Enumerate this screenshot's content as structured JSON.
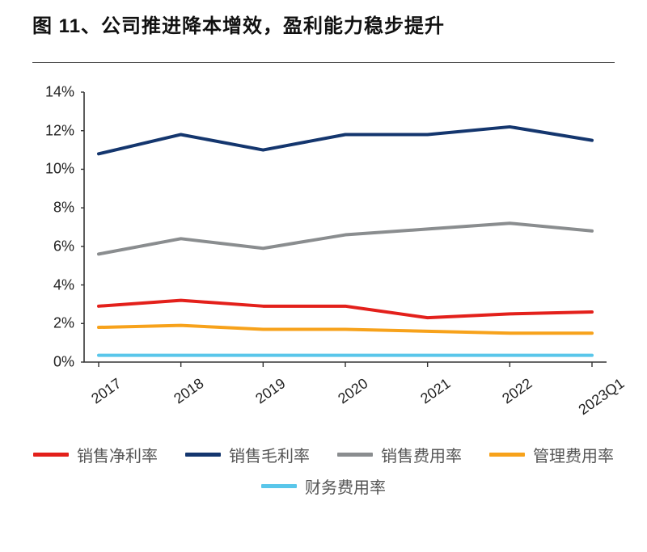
{
  "title": "图 11、公司推进降本增效，盈利能力稳步提升",
  "chart": {
    "type": "line",
    "background_color": "#ffffff",
    "axis_color": "#333333",
    "tick_color": "#333333",
    "label_fontsize": 18,
    "title_fontsize": 24,
    "legend_fontsize": 20,
    "line_width": 4,
    "ylim": [
      0,
      14
    ],
    "ytick_step": 2,
    "y_suffix": "%",
    "yticks": [
      "0%",
      "2%",
      "4%",
      "6%",
      "8%",
      "10%",
      "12%",
      "14%"
    ],
    "categories": [
      "2017",
      "2018",
      "2019",
      "2020",
      "2021",
      "2022",
      "2023Q1"
    ],
    "series": [
      {
        "name": "销售净利率",
        "color": "#e3201b",
        "values": [
          2.9,
          3.2,
          2.9,
          2.9,
          2.3,
          2.5,
          2.6
        ]
      },
      {
        "name": "销售毛利率",
        "color": "#14366e",
        "values": [
          10.8,
          11.8,
          11.0,
          11.8,
          11.8,
          12.2,
          11.5
        ]
      },
      {
        "name": "销售费用率",
        "color": "#8a8d8f",
        "values": [
          5.6,
          6.4,
          5.9,
          6.6,
          6.9,
          7.2,
          6.8
        ]
      },
      {
        "name": "管理费用率",
        "color": "#f7a21b",
        "values": [
          1.8,
          1.9,
          1.7,
          1.7,
          1.6,
          1.5,
          1.5
        ]
      },
      {
        "name": "财务费用率",
        "color": "#59c6ea",
        "values": [
          0.35,
          0.35,
          0.35,
          0.35,
          0.35,
          0.35,
          0.35
        ]
      }
    ],
    "legend_order": [
      "销售净利率",
      "销售毛利率",
      "销售费用率",
      "管理费用率",
      "财务费用率"
    ]
  }
}
